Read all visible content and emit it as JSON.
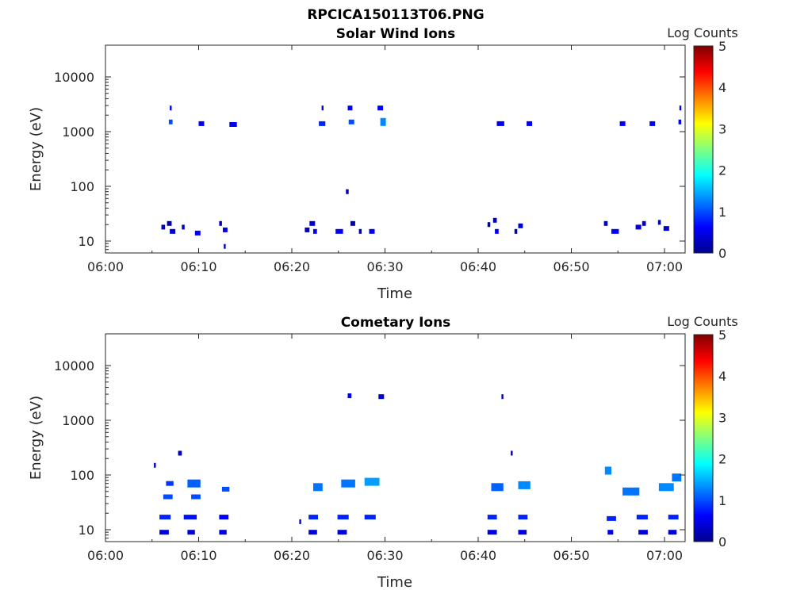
{
  "figure_title": "RPCICA150113T06.PNG",
  "chart_data": [
    {
      "type": "heatmap",
      "title": "Solar Wind Ions",
      "xlabel": "Time",
      "ylabel": "Energy (eV)",
      "x_ticks": [
        "06:00",
        "06:10",
        "06:20",
        "06:30",
        "06:40",
        "06:50",
        "07:00"
      ],
      "y_ticks": [
        "10",
        "100",
        "1000",
        "10000"
      ],
      "y_scale": "log",
      "colorbar": {
        "label": "Log Counts",
        "ticks": [
          "0",
          "1",
          "2",
          "3",
          "4",
          "5"
        ],
        "range": [
          0,
          5
        ],
        "colormap": "jet"
      },
      "cells": [
        [
          6.0,
          18,
          0.4,
          0.3
        ],
        [
          6.6,
          21,
          0.5,
          0.2
        ],
        [
          6.9,
          15,
          0.6,
          0.4
        ],
        [
          8.2,
          18,
          0.3,
          0.3
        ],
        [
          9.6,
          14,
          0.6,
          0.6
        ],
        [
          12.2,
          21,
          0.3,
          0.3
        ],
        [
          12.6,
          16,
          0.5,
          0.5
        ],
        [
          12.7,
          8,
          0.2,
          0.3
        ],
        [
          21.4,
          16,
          0.5,
          0.3
        ],
        [
          21.9,
          21,
          0.6,
          0.4
        ],
        [
          22.3,
          15,
          0.4,
          0.6
        ],
        [
          24.7,
          15,
          0.8,
          0.6
        ],
        [
          26.3,
          21,
          0.5,
          0.2
        ],
        [
          27.2,
          15,
          0.3,
          0.3
        ],
        [
          28.3,
          15,
          0.6,
          0.6
        ],
        [
          25.8,
          80,
          0.3,
          0.3
        ],
        [
          41.0,
          20,
          0.3,
          0.2
        ],
        [
          41.6,
          24,
          0.4,
          0.3
        ],
        [
          41.8,
          15,
          0.4,
          0.5
        ],
        [
          43.9,
          15,
          0.3,
          0.3
        ],
        [
          44.3,
          19,
          0.5,
          0.4
        ],
        [
          53.5,
          21,
          0.4,
          0.3
        ],
        [
          54.3,
          15,
          0.8,
          0.6
        ],
        [
          56.9,
          18,
          0.6,
          0.4
        ],
        [
          57.6,
          21,
          0.4,
          0.3
        ],
        [
          59.3,
          22,
          0.3,
          0.2
        ],
        [
          59.9,
          17,
          0.6,
          0.4
        ],
        [
          6.8,
          1500,
          0.4,
          1.0
        ],
        [
          6.9,
          2700,
          0.2,
          0.6
        ],
        [
          10.0,
          1400,
          0.6,
          0.6
        ],
        [
          13.3,
          1350,
          0.8,
          0.6
        ],
        [
          22.9,
          1400,
          0.7,
          0.8
        ],
        [
          23.2,
          2700,
          0.2,
          0.6
        ],
        [
          26.0,
          2700,
          0.5,
          0.6
        ],
        [
          26.1,
          1500,
          0.6,
          1.0
        ],
        [
          29.2,
          2700,
          0.6,
          0.6
        ],
        [
          29.5,
          1500,
          0.6,
          1.3
        ],
        [
          42.0,
          1400,
          0.8,
          0.6
        ],
        [
          45.2,
          1400,
          0.6,
          0.6
        ],
        [
          55.2,
          1400,
          0.6,
          0.6
        ],
        [
          58.4,
          1400,
          0.6,
          0.6
        ],
        [
          61.5,
          1500,
          0.3,
          0.6
        ],
        [
          61.6,
          2700,
          0.2,
          0.6
        ]
      ]
    },
    {
      "type": "heatmap",
      "title": "Cometary Ions",
      "xlabel": "Time",
      "ylabel": "Energy (eV)",
      "x_ticks": [
        "06:00",
        "06:10",
        "06:20",
        "06:30",
        "06:40",
        "06:50",
        "07:00"
      ],
      "y_ticks": [
        "10",
        "100",
        "1000",
        "10000"
      ],
      "y_scale": "log",
      "colorbar": {
        "label": "Log Counts",
        "ticks": [
          "0",
          "1",
          "2",
          "3",
          "4",
          "5"
        ],
        "range": [
          0,
          5
        ],
        "colormap": "jet"
      },
      "cells": [
        [
          5.2,
          150,
          0.2,
          0.3
        ],
        [
          7.8,
          250,
          0.4,
          0.3
        ],
        [
          26.0,
          2800,
          0.4,
          0.6
        ],
        [
          29.3,
          2700,
          0.6,
          0.4
        ],
        [
          42.5,
          2700,
          0.2,
          0.2
        ],
        [
          43.5,
          250,
          0.2,
          0.2
        ],
        [
          5.8,
          17,
          1.2,
          0.8
        ],
        [
          5.8,
          9,
          1.0,
          0.5
        ],
        [
          8.4,
          17,
          1.4,
          0.7
        ],
        [
          8.8,
          9,
          0.8,
          0.5
        ],
        [
          12.2,
          17,
          1.0,
          0.6
        ],
        [
          12.2,
          9,
          0.8,
          0.5
        ],
        [
          20.8,
          14,
          0.2,
          0.5
        ],
        [
          21.8,
          17,
          1.0,
          0.8
        ],
        [
          21.8,
          9,
          0.9,
          0.5
        ],
        [
          24.9,
          17,
          1.2,
          0.8
        ],
        [
          24.9,
          9,
          1.0,
          0.5
        ],
        [
          27.8,
          17,
          1.2,
          0.8
        ],
        [
          41.0,
          17,
          1.0,
          0.8
        ],
        [
          41.0,
          9,
          1.0,
          0.5
        ],
        [
          44.3,
          17,
          1.0,
          0.8
        ],
        [
          44.3,
          9,
          0.9,
          0.5
        ],
        [
          53.8,
          16,
          1.0,
          0.8
        ],
        [
          53.9,
          9,
          0.6,
          0.5
        ],
        [
          57.0,
          17,
          1.2,
          0.8
        ],
        [
          57.2,
          9,
          1.0,
          0.5
        ],
        [
          60.4,
          17,
          1.1,
          0.8
        ],
        [
          60.4,
          9,
          0.9,
          0.5
        ],
        [
          6.2,
          40,
          1.0,
          1.0
        ],
        [
          6.5,
          70,
          0.8,
          0.9
        ],
        [
          8.8,
          70,
          1.4,
          1.1
        ],
        [
          9.2,
          40,
          1.0,
          1.0
        ],
        [
          12.5,
          55,
          0.8,
          1.0
        ],
        [
          22.3,
          60,
          1.0,
          1.2
        ],
        [
          25.3,
          70,
          1.5,
          1.2
        ],
        [
          27.8,
          75,
          1.6,
          1.4
        ],
        [
          41.4,
          60,
          1.3,
          1.1
        ],
        [
          44.3,
          65,
          1.3,
          1.3
        ],
        [
          53.6,
          120,
          0.7,
          1.3
        ],
        [
          55.5,
          50,
          1.8,
          1.2
        ],
        [
          59.4,
          60,
          1.6,
          1.3
        ],
        [
          60.8,
          90,
          1.0,
          1.2
        ]
      ]
    }
  ]
}
